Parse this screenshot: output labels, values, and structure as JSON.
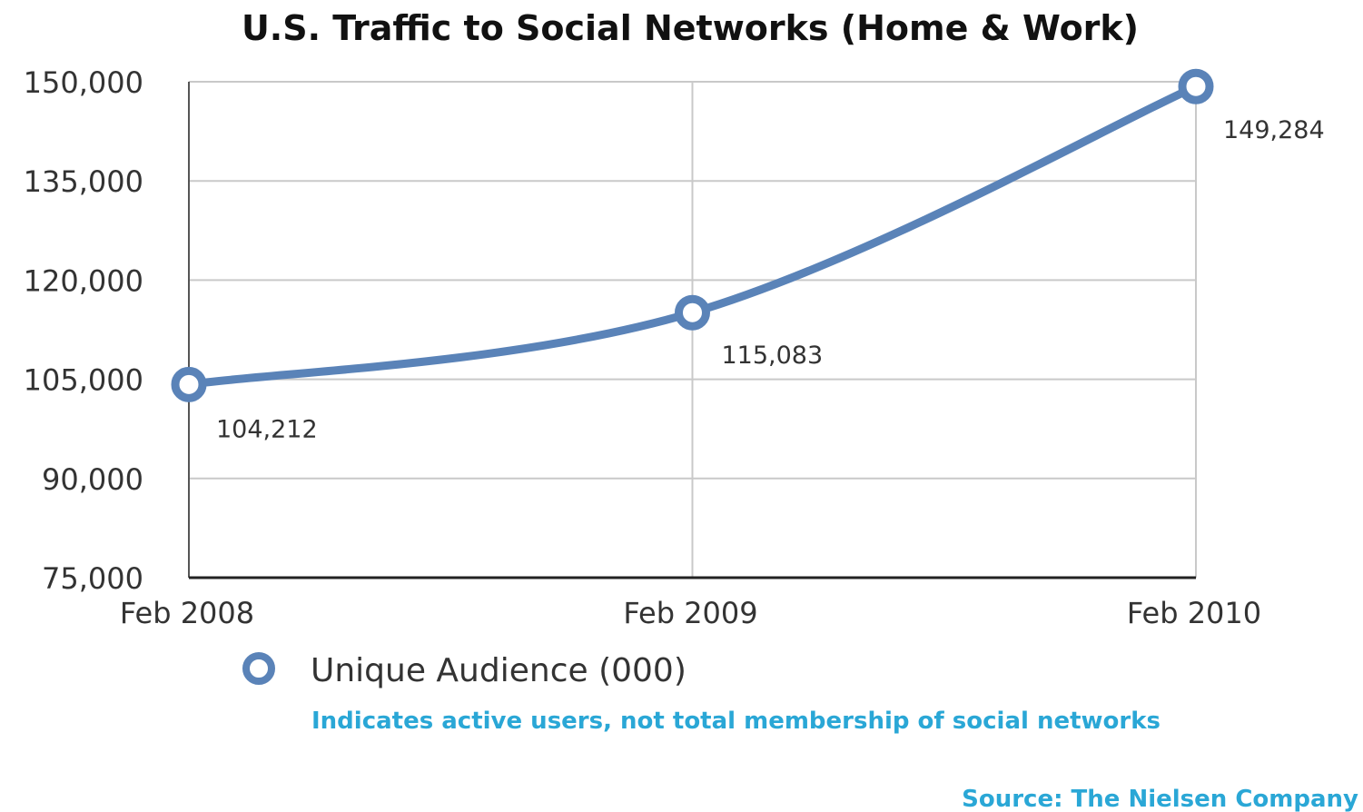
{
  "chart_data": {
    "type": "line",
    "title": "U.S. Traffic to Social Networks (Home & Work)",
    "categories": [
      "Feb 2008",
      "Feb 2009",
      "Feb 2010"
    ],
    "series": [
      {
        "name": "Unique Audience (000)",
        "values": [
          104212,
          115083,
          149284
        ]
      }
    ],
    "data_labels": [
      "104,212",
      "115,083",
      "149,284"
    ],
    "ylim": [
      75000,
      150000
    ],
    "yticks": [
      75000,
      90000,
      105000,
      120000,
      135000,
      150000
    ],
    "ytick_labels": [
      "75,000",
      "90,000",
      "105,000",
      "120,000",
      "135,000",
      "150,000"
    ],
    "grid": true,
    "legend_position": "bottom-left",
    "line_color": "#5a83b8"
  },
  "note": "Indicates active users, not total membership of social networks",
  "source": "Source: The Nielsen Company"
}
